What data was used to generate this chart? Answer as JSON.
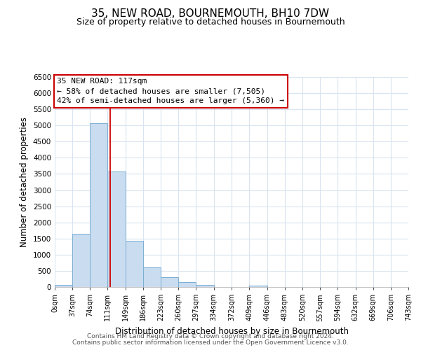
{
  "title": "35, NEW ROAD, BOURNEMOUTH, BH10 7DW",
  "subtitle": "Size of property relative to detached houses in Bournemouth",
  "xlabel": "Distribution of detached houses by size in Bournemouth",
  "ylabel": "Number of detached properties",
  "bin_edges": [
    0,
    37,
    74,
    111,
    149,
    186,
    223,
    260,
    297,
    334,
    372,
    409,
    446,
    483,
    520,
    557,
    594,
    632,
    669,
    706,
    743
  ],
  "bar_heights": [
    75,
    1650,
    5080,
    3580,
    1430,
    615,
    300,
    150,
    60,
    0,
    0,
    50,
    0,
    0,
    0,
    0,
    0,
    0,
    0,
    0
  ],
  "bar_color": "#c9dcf0",
  "bar_edge_color": "#7bafd4",
  "property_line_x": 117,
  "property_line_color": "#cc0000",
  "ylim": [
    0,
    6500
  ],
  "yticks": [
    0,
    500,
    1000,
    1500,
    2000,
    2500,
    3000,
    3500,
    4000,
    4500,
    5000,
    5500,
    6000,
    6500
  ],
  "xtick_labels": [
    "0sqm",
    "37sqm",
    "74sqm",
    "111sqm",
    "149sqm",
    "186sqm",
    "223sqm",
    "260sqm",
    "297sqm",
    "334sqm",
    "372sqm",
    "409sqm",
    "446sqm",
    "483sqm",
    "520sqm",
    "557sqm",
    "594sqm",
    "632sqm",
    "669sqm",
    "706sqm",
    "743sqm"
  ],
  "annotation_title": "35 NEW ROAD: 117sqm",
  "annotation_line1": "← 58% of detached houses are smaller (7,505)",
  "annotation_line2": "42% of semi-detached houses are larger (5,360) →",
  "footer_line1": "Contains HM Land Registry data © Crown copyright and database right 2024.",
  "footer_line2": "Contains public sector information licensed under the Open Government Licence v3.0.",
  "background_color": "#ffffff",
  "grid_color": "#d8e4f0"
}
